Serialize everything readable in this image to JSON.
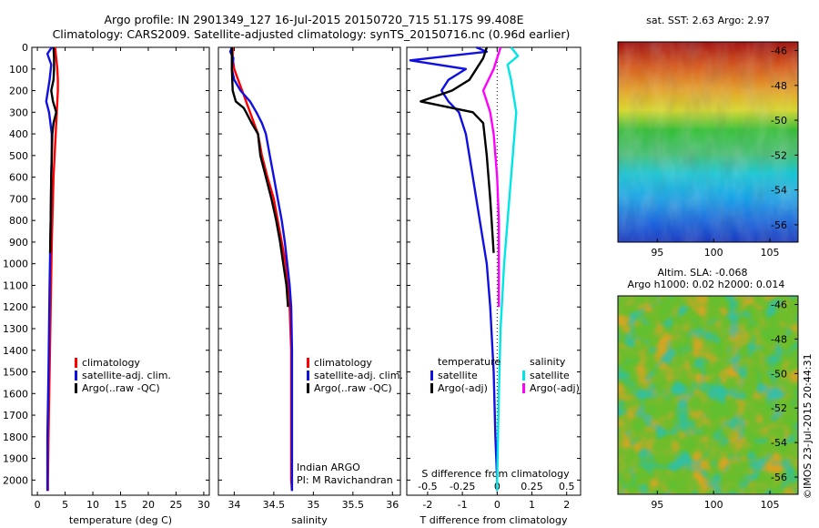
{
  "header": {
    "line1": "Argo profile: IN 2901349_127 16-Jul-2015 20150720_715 51.17S 99.408E",
    "line2": "Climatology: CARS2009. Satellite-adjusted climatology: synTS_20150716.nc (0.96d earlier)"
  },
  "watermark": "©IMOS 23-Jul-2015 20:44:31",
  "colors": {
    "climatology": "#ff0000",
    "satellite": "#1010e0",
    "argo": "#000000",
    "sat_salinity": "#00e5e5",
    "argo_salinity": "#ff00ff"
  },
  "legend_std": [
    {
      "label": "climatology",
      "color": "#ff0000"
    },
    {
      "label": "satellite-adj. clim.",
      "color": "#1010e0"
    },
    {
      "label": "Argo(..raw -QC)",
      "color": "#000000"
    }
  ],
  "legend_diff": {
    "temperature_title": "temperature",
    "salinity_title": "salinity",
    "temperature": [
      {
        "label": "satellite",
        "color": "#1010e0"
      },
      {
        "label": "Argo(-adj)",
        "color": "#000000"
      }
    ],
    "salinity": [
      {
        "label": "satellite",
        "color": "#00e5e5"
      },
      {
        "label": "Argo(-adj)",
        "color": "#ff00ff"
      }
    ]
  },
  "annotation_salinity": [
    "Indian ARGO",
    "PI: M Ravichandran"
  ],
  "maps": {
    "sst": {
      "title": "sat. SST: 2.63 Argo: 2.97",
      "x_ticks": [
        95,
        100,
        105
      ],
      "y_ticks": [
        -46,
        -48,
        -50,
        -52,
        -54,
        -56
      ],
      "xlim": [
        91.5,
        107.5
      ],
      "ylim": [
        -57,
        -45.5
      ]
    },
    "sla": {
      "title1": "Altim. SLA: -0.068",
      "title2": "Argo h1000: 0.02 h2000: 0.014",
      "x_ticks": [
        95,
        100,
        105
      ],
      "y_ticks": [
        -46,
        -48,
        -50,
        -52,
        -54,
        -56
      ],
      "xlim": [
        91.5,
        107.5
      ],
      "ylim": [
        -57,
        -45.5
      ]
    }
  },
  "chart_data": [
    {
      "type": "line",
      "xlabel": "temperature (deg C)",
      "ylabel": "",
      "xlim": [
        -1,
        31
      ],
      "ylim": [
        2070,
        0
      ],
      "x_ticks": [
        0,
        5,
        10,
        15,
        20,
        25,
        30
      ],
      "y_ticks": [
        0,
        100,
        200,
        300,
        400,
        500,
        600,
        700,
        800,
        900,
        1000,
        1100,
        1200,
        1300,
        1400,
        1500,
        1600,
        1700,
        1800,
        1900,
        2000
      ],
      "series": [
        {
          "name": "climatology",
          "color": "#ff0000",
          "points": [
            [
              3.2,
              0
            ],
            [
              3.4,
              50
            ],
            [
              3.6,
              100
            ],
            [
              3.7,
              150
            ],
            [
              3.7,
              200
            ],
            [
              3.5,
              300
            ],
            [
              3.3,
              400
            ],
            [
              3.1,
              500
            ],
            [
              2.9,
              600
            ],
            [
              2.8,
              700
            ],
            [
              2.6,
              900
            ],
            [
              2.4,
              1200
            ],
            [
              2.2,
              1500
            ],
            [
              2.0,
              1800
            ],
            [
              1.9,
              2000
            ],
            [
              1.9,
              2050
            ]
          ]
        },
        {
          "name": "satellite-adj. clim.",
          "color": "#1010e0",
          "points": [
            [
              2.6,
              0
            ],
            [
              1.8,
              30
            ],
            [
              2.5,
              80
            ],
            [
              2.2,
              150
            ],
            [
              1.6,
              250
            ],
            [
              2.1,
              300
            ],
            [
              2.6,
              400
            ],
            [
              2.6,
              500
            ],
            [
              2.5,
              600
            ],
            [
              2.4,
              800
            ],
            [
              2.2,
              1100
            ],
            [
              2.0,
              1500
            ],
            [
              1.8,
              1800
            ],
            [
              1.8,
              2000
            ],
            [
              1.8,
              2050
            ]
          ]
        },
        {
          "name": "Argo(..raw -QC)",
          "color": "#000000",
          "points": [
            [
              2.9,
              0
            ],
            [
              3.0,
              50
            ],
            [
              3.0,
              100
            ],
            [
              2.9,
              150
            ],
            [
              2.5,
              200
            ],
            [
              2.8,
              250
            ],
            [
              3.4,
              300
            ],
            [
              2.9,
              350
            ],
            [
              2.7,
              400
            ],
            [
              2.6,
              500
            ],
            [
              2.5,
              600
            ],
            [
              2.4,
              800
            ],
            [
              2.3,
              950
            ]
          ]
        }
      ]
    },
    {
      "type": "line",
      "xlabel": "salinity",
      "ylabel": "",
      "xlim": [
        33.8,
        36.1
      ],
      "ylim": [
        2070,
        0
      ],
      "x_ticks": [
        34,
        34.5,
        35,
        35.5,
        36
      ],
      "tick_labels": [
        "34",
        "34.5",
        "35",
        "35.5",
        "36"
      ],
      "series": [
        {
          "name": "climatology",
          "color": "#ff0000",
          "points": [
            [
              33.98,
              0
            ],
            [
              33.98,
              50
            ],
            [
              34.0,
              100
            ],
            [
              34.05,
              150
            ],
            [
              34.1,
              200
            ],
            [
              34.15,
              250
            ],
            [
              34.2,
              300
            ],
            [
              34.25,
              350
            ],
            [
              34.3,
              400
            ],
            [
              34.35,
              500
            ],
            [
              34.42,
              600
            ],
            [
              34.5,
              700
            ],
            [
              34.55,
              800
            ],
            [
              34.6,
              900
            ],
            [
              34.65,
              1000
            ],
            [
              34.68,
              1100
            ],
            [
              34.7,
              1200
            ],
            [
              34.71,
              1300
            ],
            [
              34.72,
              1400
            ],
            [
              34.72,
              1600
            ],
            [
              34.72,
              1800
            ],
            [
              34.72,
              2000
            ],
            [
              34.73,
              2050
            ]
          ]
        },
        {
          "name": "satellite-adj. clim.",
          "color": "#1010e0",
          "points": [
            [
              33.97,
              0
            ],
            [
              33.95,
              20
            ],
            [
              33.99,
              50
            ],
            [
              33.97,
              100
            ],
            [
              34.0,
              150
            ],
            [
              34.08,
              200
            ],
            [
              34.2,
              250
            ],
            [
              34.28,
              300
            ],
            [
              34.35,
              350
            ],
            [
              34.4,
              400
            ],
            [
              34.45,
              500
            ],
            [
              34.5,
              600
            ],
            [
              34.55,
              700
            ],
            [
              34.6,
              800
            ],
            [
              34.64,
              900
            ],
            [
              34.67,
              1000
            ],
            [
              34.7,
              1100
            ],
            [
              34.72,
              1200
            ],
            [
              34.73,
              1400
            ],
            [
              34.73,
              1600
            ],
            [
              34.73,
              1800
            ],
            [
              34.73,
              2000
            ],
            [
              34.73,
              2050
            ]
          ]
        },
        {
          "name": "Argo(..raw -QC)",
          "color": "#000000",
          "points": [
            [
              33.97,
              0
            ],
            [
              33.97,
              100
            ],
            [
              33.98,
              200
            ],
            [
              34.02,
              250
            ],
            [
              34.12,
              280
            ],
            [
              34.15,
              300
            ],
            [
              34.22,
              350
            ],
            [
              34.3,
              400
            ],
            [
              34.33,
              500
            ],
            [
              34.4,
              600
            ],
            [
              34.47,
              700
            ],
            [
              34.53,
              800
            ],
            [
              34.58,
              900
            ],
            [
              34.62,
              1000
            ],
            [
              34.66,
              1100
            ],
            [
              34.68,
              1200
            ]
          ]
        }
      ]
    },
    {
      "type": "line",
      "xlabel": "T difference from climatology",
      "xlabel_top": "S difference from climatology",
      "ylabel": "",
      "xlim": [
        -2.6,
        2.4
      ],
      "ylim": [
        2070,
        0
      ],
      "x_ticks": [
        -2,
        -1,
        0,
        1,
        2
      ],
      "x_tick_labels": [
        "-2",
        "-1",
        "0",
        "1",
        "2"
      ],
      "s_ticks": [
        -0.5,
        -0.25,
        0,
        0.25,
        0.5
      ],
      "s_tick_labels": [
        "-0.5",
        "-0.25",
        "0",
        "0.25",
        "0.5"
      ],
      "s_scale": 4,
      "series": [
        {
          "name": "satellite",
          "color": "#1010e0",
          "points": [
            [
              -0.6,
              0
            ],
            [
              -0.3,
              20
            ],
            [
              -2.5,
              60
            ],
            [
              -0.9,
              100
            ],
            [
              -1.4,
              150
            ],
            [
              -1.6,
              200
            ],
            [
              -1.4,
              250
            ],
            [
              -1.1,
              300
            ],
            [
              -0.9,
              400
            ],
            [
              -0.7,
              600
            ],
            [
              -0.5,
              800
            ],
            [
              -0.3,
              1000
            ],
            [
              -0.2,
              1200
            ],
            [
              -0.1,
              1500
            ],
            [
              -0.05,
              1800
            ],
            [
              0,
              2000
            ],
            [
              0,
              2050
            ]
          ]
        },
        {
          "name": "Argo(-adj)",
          "color": "#000000",
          "points": [
            [
              -0.3,
              0
            ],
            [
              -0.4,
              50
            ],
            [
              -0.6,
              100
            ],
            [
              -0.8,
              150
            ],
            [
              -1.3,
              200
            ],
            [
              -2.2,
              250
            ],
            [
              -0.7,
              300
            ],
            [
              -0.4,
              350
            ],
            [
              -0.3,
              500
            ],
            [
              -0.2,
              700
            ],
            [
              -0.1,
              950
            ]
          ]
        },
        {
          "name": "satellite",
          "color": "#00e5e5",
          "points": [
            [
              0.4,
              0
            ],
            [
              0.6,
              40
            ],
            [
              0.3,
              80
            ],
            [
              0.4,
              150
            ],
            [
              0.5,
              250
            ],
            [
              0.55,
              300
            ],
            [
              0.5,
              400
            ],
            [
              0.45,
              500
            ],
            [
              0.4,
              600
            ],
            [
              0.3,
              800
            ],
            [
              0.2,
              1000
            ],
            [
              0.1,
              1300
            ],
            [
              0.05,
              1600
            ],
            [
              0,
              2000
            ],
            [
              0,
              2050
            ]
          ]
        },
        {
          "name": "Argo(-adj)",
          "color": "#ff00ff",
          "points": [
            [
              0.1,
              0
            ],
            [
              0.0,
              50
            ],
            [
              -0.1,
              100
            ],
            [
              -0.4,
              200
            ],
            [
              -0.3,
              250
            ],
            [
              -0.2,
              300
            ],
            [
              -0.1,
              400
            ],
            [
              0.0,
              600
            ],
            [
              0.05,
              800
            ],
            [
              0.05,
              1000
            ],
            [
              0.05,
              1200
            ]
          ]
        }
      ]
    }
  ]
}
